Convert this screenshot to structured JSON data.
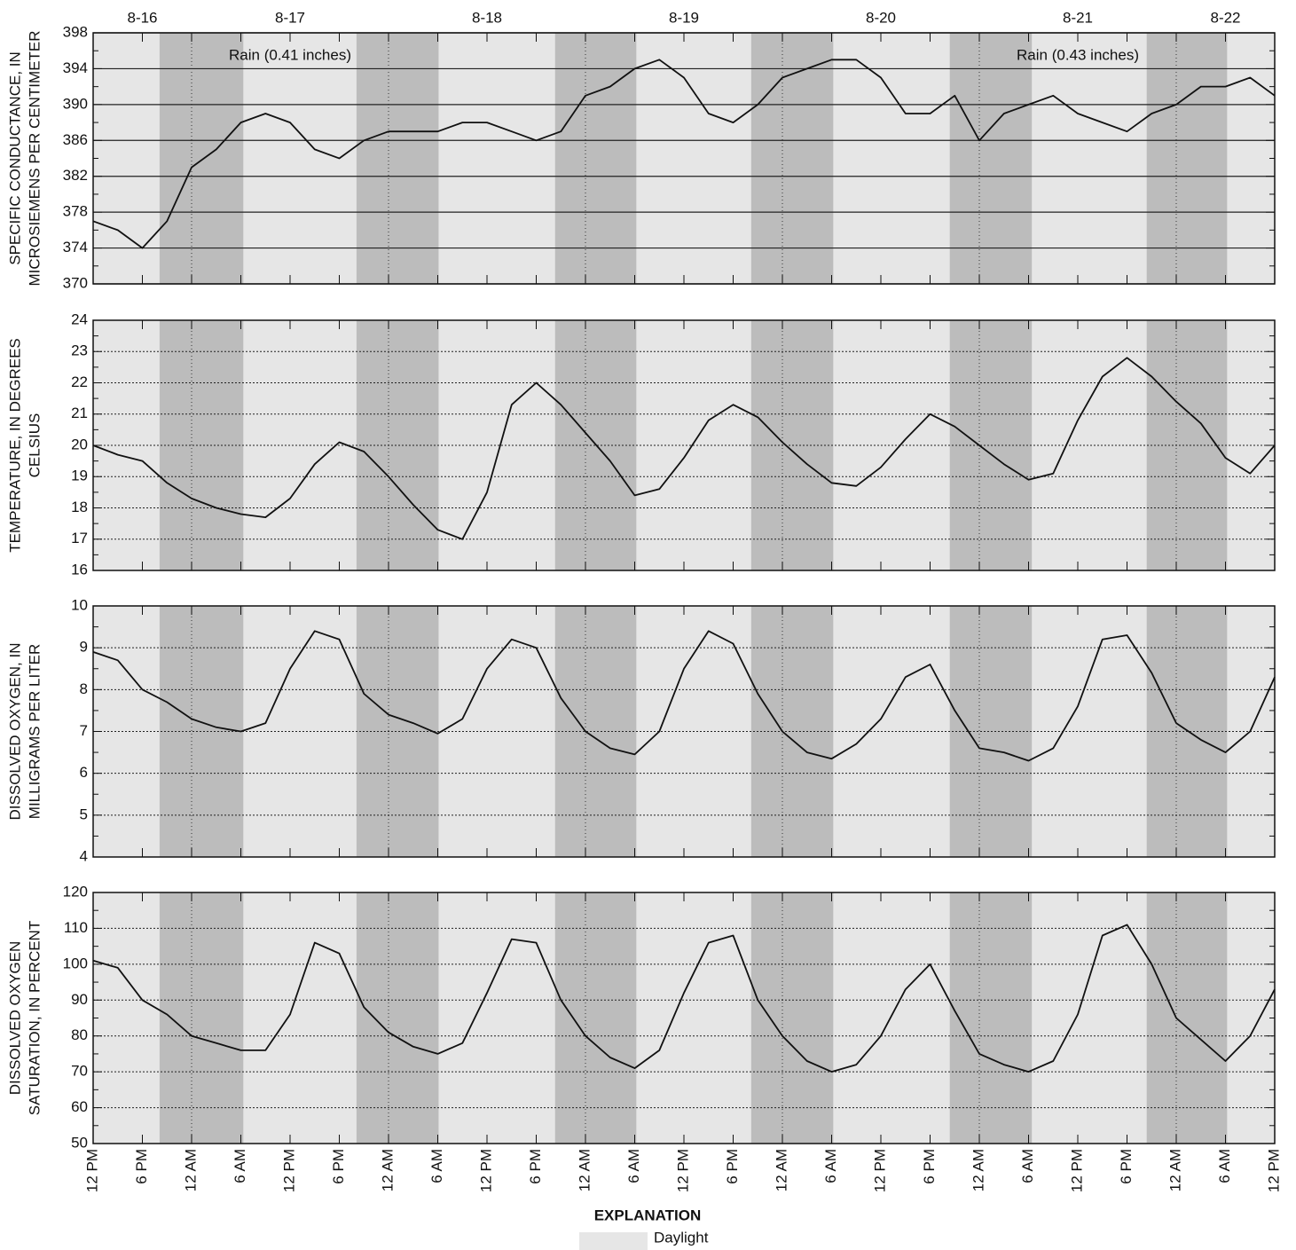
{
  "chart_data": [
    {
      "type": "line",
      "ylabel": [
        "SPECIFIC CONDUCTANCE, IN",
        "MICROSIEMENS PER CENTIMETER"
      ],
      "ylim": [
        370,
        398
      ],
      "yticks": [
        370,
        374,
        378,
        382,
        386,
        390,
        394,
        398
      ],
      "grid": "solid",
      "xlim": [
        0,
        144
      ],
      "date_labels": [
        {
          "value": 6,
          "label": "8-16"
        },
        {
          "value": 24,
          "label": "8-17"
        },
        {
          "value": 48,
          "label": "8-18"
        },
        {
          "value": 72,
          "label": "8-19"
        },
        {
          "value": 96,
          "label": "8-20"
        },
        {
          "value": 120,
          "label": "8-21"
        },
        {
          "value": 138,
          "label": "8-22"
        }
      ],
      "annotations": [
        {
          "text": "Rain (0.41 inches)",
          "x": 24
        },
        {
          "text": "Rain (0.43 inches)",
          "x": 120
        }
      ],
      "x": [
        0,
        3,
        6,
        9,
        12,
        15,
        18,
        21,
        24,
        27,
        30,
        33,
        36,
        39,
        42,
        45,
        48,
        51,
        54,
        57,
        60,
        63,
        66,
        69,
        72,
        75,
        78,
        81,
        84,
        87,
        90,
        93,
        96,
        99,
        102,
        105,
        108,
        111,
        114,
        117,
        120,
        123,
        126,
        129,
        132,
        135,
        138,
        141,
        144
      ],
      "values": [
        377,
        376,
        374,
        377,
        383,
        385,
        388,
        389,
        388,
        385,
        384,
        386,
        387,
        387,
        387,
        388,
        388,
        387,
        386,
        387,
        391,
        392,
        394,
        395,
        393,
        389,
        388,
        390,
        393,
        394,
        395,
        395,
        393,
        389,
        389,
        391,
        386,
        389,
        390,
        391,
        389,
        388,
        387,
        389,
        390,
        392,
        392,
        393,
        391
      ],
      "color": "#111111"
    },
    {
      "type": "line",
      "ylabel": [
        "TEMPERATURE, IN DEGREES",
        "CELSIUS"
      ],
      "ylim": [
        16,
        24
      ],
      "yticks": [
        16,
        17,
        18,
        19,
        20,
        21,
        22,
        23,
        24
      ],
      "grid": "dotted",
      "xlim": [
        0,
        144
      ],
      "x": [
        0,
        3,
        6,
        9,
        12,
        15,
        18,
        21,
        24,
        27,
        30,
        33,
        36,
        39,
        42,
        45,
        48,
        51,
        54,
        57,
        60,
        63,
        66,
        69,
        72,
        75,
        78,
        81,
        84,
        87,
        90,
        93,
        96,
        99,
        102,
        105,
        108,
        111,
        114,
        117,
        120,
        123,
        126,
        129,
        132,
        135,
        138,
        141,
        144
      ],
      "values": [
        20.0,
        19.7,
        19.5,
        18.8,
        18.3,
        18.0,
        17.8,
        17.7,
        18.3,
        19.4,
        20.1,
        19.8,
        19.0,
        18.1,
        17.3,
        17.0,
        18.5,
        21.3,
        22.0,
        21.3,
        20.4,
        19.5,
        18.4,
        18.6,
        19.6,
        20.8,
        21.3,
        20.9,
        20.1,
        19.4,
        18.8,
        18.7,
        19.3,
        20.2,
        21.0,
        20.6,
        20.0,
        19.4,
        18.9,
        19.1,
        20.8,
        22.2,
        22.8,
        22.2,
        21.4,
        20.7,
        19.6,
        19.1,
        20.0
      ],
      "color": "#111111"
    },
    {
      "type": "line",
      "ylabel": [
        "DISSOLVED OXYGEN, IN",
        "MILLIGRAMS PER LITER"
      ],
      "ylim": [
        4,
        10
      ],
      "yticks": [
        4,
        5,
        6,
        7,
        8,
        9,
        10
      ],
      "grid": "dotted",
      "xlim": [
        0,
        144
      ],
      "x": [
        0,
        3,
        6,
        9,
        12,
        15,
        18,
        21,
        24,
        27,
        30,
        33,
        36,
        39,
        42,
        45,
        48,
        51,
        54,
        57,
        60,
        63,
        66,
        69,
        72,
        75,
        78,
        81,
        84,
        87,
        90,
        93,
        96,
        99,
        102,
        105,
        108,
        111,
        114,
        117,
        120,
        123,
        126,
        129,
        132,
        135,
        138,
        141,
        144
      ],
      "values": [
        8.9,
        8.7,
        8.0,
        7.7,
        7.3,
        7.1,
        7.0,
        7.2,
        8.5,
        9.4,
        9.2,
        7.9,
        7.4,
        7.2,
        6.95,
        7.3,
        8.5,
        9.2,
        9.0,
        7.8,
        7.0,
        6.6,
        6.45,
        7.0,
        8.5,
        9.4,
        9.1,
        7.9,
        7.0,
        6.5,
        6.35,
        6.7,
        7.3,
        8.3,
        8.6,
        7.5,
        6.6,
        6.5,
        6.3,
        6.6,
        7.6,
        9.2,
        9.3,
        8.4,
        7.2,
        6.8,
        6.5,
        7.0,
        8.3
      ],
      "color": "#111111"
    },
    {
      "type": "line",
      "ylabel": [
        "DISSOLVED OXYGEN",
        "SATURATION, IN PERCENT"
      ],
      "ylim": [
        50,
        120
      ],
      "yticks": [
        50,
        60,
        70,
        80,
        90,
        100,
        110,
        120
      ],
      "grid": "dotted",
      "xlim": [
        0,
        144
      ],
      "xticks": [
        {
          "value": 0,
          "label": "12 PM"
        },
        {
          "value": 6,
          "label": "6 PM"
        },
        {
          "value": 12,
          "label": "12 AM"
        },
        {
          "value": 18,
          "label": "6 AM"
        },
        {
          "value": 24,
          "label": "12 PM"
        },
        {
          "value": 30,
          "label": "6 PM"
        },
        {
          "value": 36,
          "label": "12 AM"
        },
        {
          "value": 42,
          "label": "6 AM"
        },
        {
          "value": 48,
          "label": "12 PM"
        },
        {
          "value": 54,
          "label": "6 PM"
        },
        {
          "value": 60,
          "label": "12 AM"
        },
        {
          "value": 66,
          "label": "6 AM"
        },
        {
          "value": 72,
          "label": "12 PM"
        },
        {
          "value": 78,
          "label": "6 PM"
        },
        {
          "value": 84,
          "label": "12 AM"
        },
        {
          "value": 90,
          "label": "6 AM"
        },
        {
          "value": 96,
          "label": "12 PM"
        },
        {
          "value": 102,
          "label": "6 PM"
        },
        {
          "value": 108,
          "label": "12 AM"
        },
        {
          "value": 114,
          "label": "6 AM"
        },
        {
          "value": 120,
          "label": "12 PM"
        },
        {
          "value": 126,
          "label": "6 PM"
        },
        {
          "value": 132,
          "label": "12 AM"
        },
        {
          "value": 138,
          "label": "6 AM"
        },
        {
          "value": 144,
          "label": "12 PM"
        }
      ],
      "x": [
        0,
        3,
        6,
        9,
        12,
        15,
        18,
        21,
        24,
        27,
        30,
        33,
        36,
        39,
        42,
        45,
        48,
        51,
        54,
        57,
        60,
        63,
        66,
        69,
        72,
        75,
        78,
        81,
        84,
        87,
        90,
        93,
        96,
        99,
        102,
        105,
        108,
        111,
        114,
        117,
        120,
        123,
        126,
        129,
        132,
        135,
        138,
        141,
        144
      ],
      "values": [
        101,
        99,
        90,
        86,
        80,
        78,
        76,
        76,
        86,
        106,
        103,
        88,
        81,
        77,
        75,
        78,
        92,
        107,
        106,
        90,
        80,
        74,
        71,
        76,
        92,
        106,
        108,
        90,
        80,
        73,
        70,
        72,
        80,
        93,
        100,
        87,
        75,
        72,
        70,
        73,
        86,
        108,
        111,
        100,
        85,
        79,
        73,
        80,
        93
      ],
      "color": "#111111"
    }
  ],
  "night_periods": [
    [
      8.1,
      18.3
    ],
    [
      32.1,
      42.1
    ],
    [
      56.3,
      66.2
    ],
    [
      80.2,
      90.2
    ],
    [
      104.4,
      114.4
    ],
    [
      128.4,
      138.2
    ]
  ],
  "vertical_grid": [
    12,
    36,
    60,
    84,
    108,
    132
  ],
  "daylight_color": "#e6e6e6",
  "night_color": "#bcbcbc",
  "legend": {
    "title": "EXPLANATION",
    "items": [
      "Daylight"
    ]
  }
}
